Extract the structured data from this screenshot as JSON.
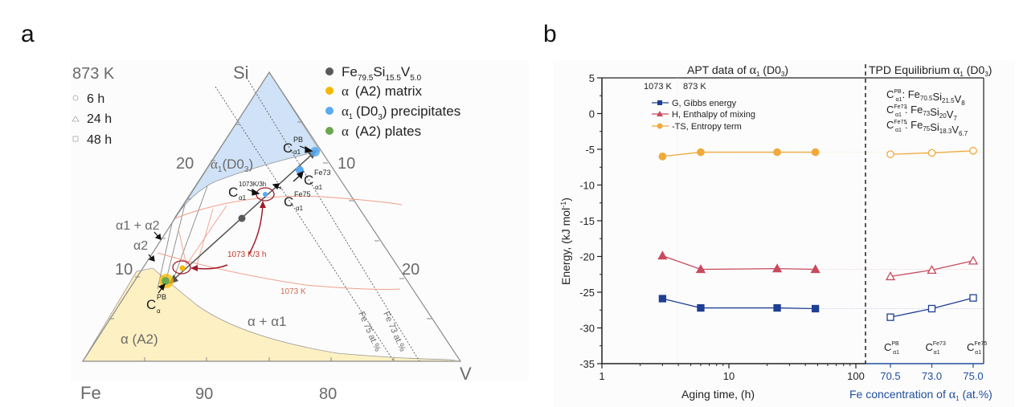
{
  "panel_labels": [
    "a",
    "b"
  ],
  "colors": {
    "alpha_region": "#fdf0c2",
    "alpha1_region": "#cfe2f7",
    "gibbs": "#1f3f94",
    "enthalpy": "#c84a5e",
    "entropy": "#f0a93a",
    "composition_point": "#5a5a5a",
    "matrix": "#f5b800",
    "precipitates": "#5aaaf0",
    "plates": "#6aa84f",
    "isotherm_1073": "#f0a08a",
    "annotation_red": "#a01b2a"
  },
  "chart_data": [
    {
      "type": "ternary",
      "panel": "a",
      "temperature_label": "873 K",
      "corners": {
        "top": "Si",
        "bottom_left": "Fe",
        "bottom_right": "V"
      },
      "time_markers": [
        {
          "symbol": "circle",
          "label": "6 h"
        },
        {
          "symbol": "triangle",
          "label": "24 h"
        },
        {
          "symbol": "square",
          "label": "48 h"
        }
      ],
      "legend": [
        {
          "label_main": "Fe",
          "subs": [
            "79.5",
            "15.5",
            "5.0"
          ],
          "label_parts": [
            "Si",
            "V"
          ],
          "color_key": "composition_point",
          "text": "Fe79.5Si15.5V5.0"
        },
        {
          "text": "α  (A2) matrix",
          "color_key": "matrix"
        },
        {
          "text": "α1 (D03) precipitates",
          "color_key": "precipitates"
        },
        {
          "text": "α  (A2) plates",
          "color_key": "plates"
        }
      ],
      "legend_text": {
        "composition": "Fe",
        "comp_sub1": "79.5",
        "comp_si": "Si",
        "comp_sub2": "15.5",
        "comp_v": "V",
        "comp_sub3": "5.0",
        "matrix_alpha": "α",
        "matrix": "(A2) matrix",
        "precip_alpha": "α",
        "precip_sub": "1",
        "precip": "(D0",
        "precip_sub3": "3",
        "precip_end": ") precipitates",
        "plates_alpha": "α",
        "plates": "(A2) plates"
      },
      "axis_ticks": {
        "left_edge": [
          "20",
          "10"
        ],
        "right_edge": [
          "10",
          "20"
        ],
        "bottom_edge": [
          "90",
          "80"
        ]
      },
      "regions": {
        "alpha1": "α1(D03)",
        "alpha1_alpha": "α",
        "alpha1_sub": "1",
        "alpha1_rest": "(D0",
        "alpha1_sub3": "3",
        "alpha_a2": "α (A2)",
        "two_phase": "α + α1",
        "alpha1_alpha2": "α1 + α2",
        "alpha2": "α2"
      },
      "annotations": {
        "c_alpha1_pb": {
          "base": "C",
          "sup": "PB",
          "sub": "α1"
        },
        "c_alpha1_fe73": {
          "base": "C",
          "sup": "Fe73",
          "sub": "α1"
        },
        "c_alpha1_fe75": {
          "base": "C",
          "sup": "Fe75",
          "sub": "α1"
        },
        "c_alpha1_1073": {
          "base": "C",
          "sup": "1073K/3h",
          "sub": "α1"
        },
        "c_alpha_pb": {
          "base": "C",
          "sup": "PB",
          "sub": "α"
        },
        "heat_treat": "1073 K/3 h",
        "isotherm": "1073 K",
        "fe75_line": "Fe 75 at.%",
        "fe73_line": "Fe 73 at.%"
      }
    },
    {
      "type": "line",
      "panel": "b",
      "ylabel": "Energy, (kJ mol⁻¹)",
      "ylabel_main": "Energy, (kJ mol",
      "ylabel_sup": "-1",
      "ylabel_end": ")",
      "ylim": [
        -35,
        5
      ],
      "yticks": [
        "5",
        "0",
        "-5",
        "-10",
        "-15",
        "-20",
        "-25",
        "-30",
        "-35"
      ],
      "left_section": {
        "title": "APT data of α1 (D03)",
        "title_main": "APT data of ",
        "title_alpha": "α",
        "title_sub": "1",
        "title_rest": " (D0",
        "title_sub3": "3",
        "title_end": ")",
        "xscale": "log",
        "xlim": [
          1,
          120
        ],
        "xlabel": "Aging time, (h)",
        "xticks": [
          "1",
          "10",
          "100"
        ],
        "temp_labels": [
          "1073 K",
          "873 K"
        ],
        "x": [
          3,
          6,
          24,
          48
        ],
        "series": [
          {
            "name": "G, Gibbs energy",
            "marker": "square-filled",
            "color_key": "gibbs",
            "values": [
              -25.9,
              -27.2,
              -27.2,
              -27.3
            ]
          },
          {
            "name": "H, Enthalpy of mixing",
            "marker": "triangle-filled",
            "color_key": "enthalpy",
            "values": [
              -19.9,
              -21.8,
              -21.7,
              -21.8
            ]
          },
          {
            "name": "-TS, Entropy term",
            "marker": "circle-filled",
            "color_key": "entropy",
            "values": [
              -6.0,
              -5.4,
              -5.4,
              -5.4
            ]
          }
        ]
      },
      "right_section": {
        "title": "TPD Equilibrium α1 (D03)",
        "title_main": "TPD Equilibrium ",
        "title_alpha": "α",
        "title_sub": "1",
        "title_rest": " (D0",
        "title_sub3": "3",
        "title_end": ")",
        "xlabel": "Fe concentration of α1 (at.%)",
        "xlabel_main": "Fe concentration of ",
        "xlabel_alpha": "α",
        "xlabel_sub": "1",
        "xlabel_end": " (at.%)",
        "categories": [
          "70.5",
          "73.0",
          "75.0"
        ],
        "category_labels": [
          {
            "base": "C",
            "sup": "PB",
            "sub": "α1"
          },
          {
            "base": "C",
            "sup": "Fe73",
            "sub": "α1"
          },
          {
            "base": "C",
            "sup": "Fe75",
            "sub": "α1"
          }
        ],
        "compositions": [
          {
            "label_sup": "PB",
            "formula": [
              [
                "Fe",
                "70.5"
              ],
              [
                "Si",
                "21.5"
              ],
              [
                "V",
                "8"
              ]
            ]
          },
          {
            "label_sup": "Fe73",
            "formula": [
              [
                "Fe",
                "73"
              ],
              [
                "Si",
                "20"
              ],
              [
                "V",
                "7"
              ]
            ]
          },
          {
            "label_sup": "Fe75",
            "formula": [
              [
                "Fe",
                "75"
              ],
              [
                "Si",
                "18.3"
              ],
              [
                "V",
                "6.7"
              ]
            ]
          }
        ],
        "series": [
          {
            "name": "G",
            "marker": "square-open",
            "color_key": "gibbs",
            "values": [
              -28.5,
              -27.3,
              -25.8
            ]
          },
          {
            "name": "H",
            "marker": "triangle-open",
            "color_key": "enthalpy",
            "values": [
              -22.8,
              -21.9,
              -20.6
            ]
          },
          {
            "name": "-TS",
            "marker": "circle-open",
            "color_key": "entropy",
            "values": [
              -5.7,
              -5.5,
              -5.2
            ]
          }
        ]
      }
    }
  ]
}
